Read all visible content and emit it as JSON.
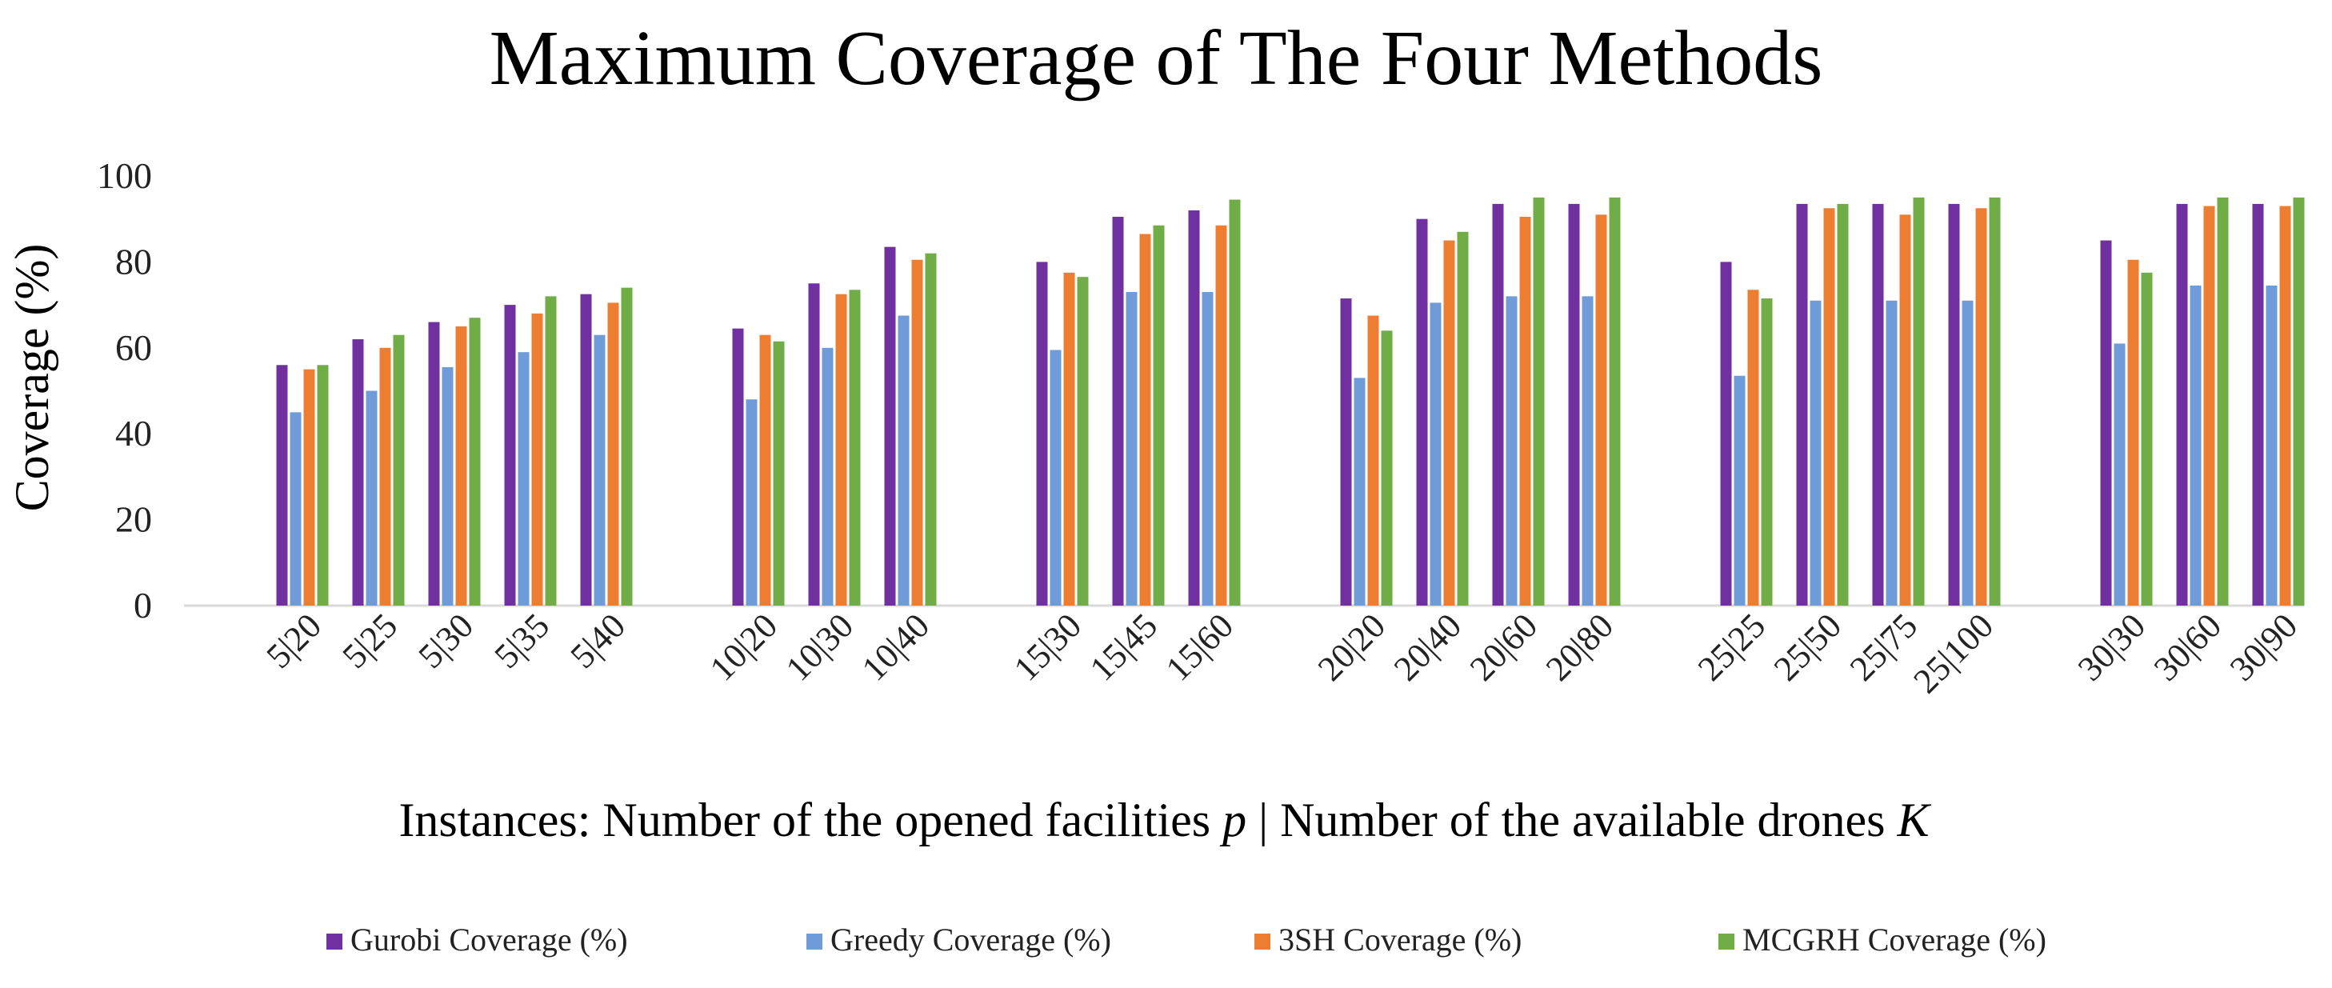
{
  "chart_data": {
    "type": "bar",
    "title": "Maximum Coverage of The Four Methods",
    "xlabel_parts": {
      "prefix": "Instances: Number of the opened facilities ",
      "var1": "p",
      "middle": " | Number of the available drones ",
      "var2": "K"
    },
    "ylabel": "Coverage (%)",
    "ylim": [
      0,
      100
    ],
    "yticks": [
      0,
      20,
      40,
      60,
      80,
      100
    ],
    "gridlines": false,
    "legend_position": "bottom",
    "groups": [
      [
        "5|20",
        "5|25",
        "5|30",
        "5|35",
        "5|40"
      ],
      [
        "10|20",
        "10|30",
        "10|40"
      ],
      [
        "15|30",
        "15|45",
        "15|60"
      ],
      [
        "20|20",
        "20|40",
        "20|60",
        "20|80"
      ],
      [
        "25|25",
        "25|50",
        "25|75",
        "25|100"
      ],
      [
        "30|30",
        "30|60",
        "30|90"
      ]
    ],
    "series": [
      {
        "name": "Gurobi Coverage (%)",
        "color": "#7030A0",
        "values": [
          56,
          62,
          66,
          70,
          72.5,
          64.5,
          75,
          83.5,
          80,
          90.5,
          92,
          71.5,
          90,
          93.5,
          93.5,
          80,
          93.5,
          93.5,
          93.5,
          85,
          93.5,
          93.5
        ]
      },
      {
        "name": "Greedy Coverage (%)",
        "color": "#6F9BD8",
        "values": [
          45,
          50,
          55.5,
          59,
          63,
          48,
          60,
          67.5,
          59.5,
          73,
          73,
          53,
          70.5,
          72,
          72,
          53.5,
          71,
          71,
          71,
          61,
          74.5,
          74.5
        ]
      },
      {
        "name": "3SH Coverage (%)",
        "color": "#ED7D31",
        "values": [
          55,
          60,
          65,
          68,
          70.5,
          63,
          72.5,
          80.5,
          77.5,
          86.5,
          88.5,
          67.5,
          85,
          90.5,
          91,
          73.5,
          92.5,
          91,
          92.5,
          80.5,
          93,
          93
        ]
      },
      {
        "name": "MCGRH Coverage (%)",
        "color": "#70AD47",
        "values": [
          56,
          63,
          67,
          72,
          74,
          61.5,
          73.5,
          82,
          76.5,
          88.5,
          94.5,
          64,
          87,
          95,
          95,
          71.5,
          93.5,
          95,
          95,
          77.5,
          95,
          95
        ]
      }
    ]
  }
}
